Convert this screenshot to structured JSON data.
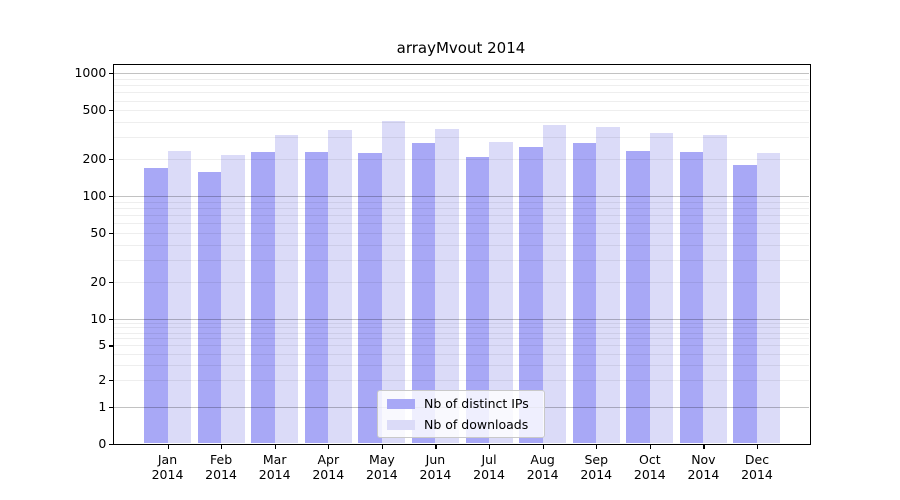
{
  "title": "arrayMvout 2014",
  "chart_data": {
    "type": "bar",
    "title": "arrayMvout 2014",
    "categories": [
      "Jan",
      "Feb",
      "Mar",
      "Apr",
      "May",
      "Jun",
      "Jul",
      "Aug",
      "Sep",
      "Oct",
      "Nov",
      "Dec"
    ],
    "x_year": "2014",
    "series": [
      {
        "name": "Nb of distinct IPs",
        "color": "#a8a8f6",
        "values": [
          170,
          158,
          229,
          227,
          225,
          272,
          207,
          251,
          269,
          234,
          227,
          179
        ]
      },
      {
        "name": "Nb of downloads",
        "color": "#dbdbf8",
        "values": [
          234,
          216,
          314,
          345,
          410,
          352,
          275,
          381,
          365,
          324,
          314,
          224
        ]
      }
    ],
    "y_scale": "symlog",
    "y_ticks": [
      0,
      1,
      2,
      5,
      10,
      20,
      50,
      100,
      200,
      500,
      1000
    ],
    "y_major_gridlines": [
      1,
      10,
      100,
      1000
    ],
    "ylim": [
      0,
      1200
    ],
    "grid": true,
    "legend_position": "lower center"
  }
}
